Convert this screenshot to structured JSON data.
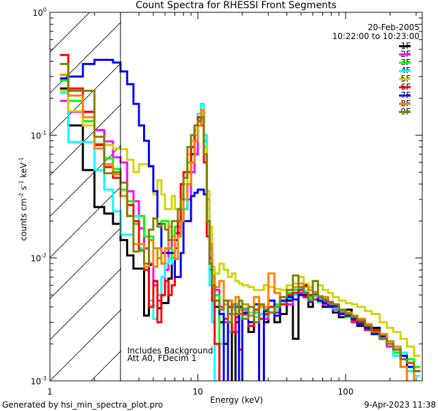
{
  "chart_data": {
    "type": "line",
    "title": "Count Spectra for RHESSI Front Segments",
    "subtitle_date": "20-Feb-2005",
    "subtitle_time": "10:22:00 to 10:23:00",
    "xlabel": "Energy (keV)",
    "ylabel_parts": {
      "a": "counts cm",
      "b": "-2",
      "c": " s",
      "d": "-1",
      "e": " keV",
      "f": "-1"
    },
    "xscale": "log",
    "yscale": "log",
    "xlim": [
      1,
      330
    ],
    "ylim": [
      0.001,
      1
    ],
    "xticks": [
      {
        "value": 1,
        "label": "1"
      },
      {
        "value": 10,
        "label": "10"
      },
      {
        "value": 100,
        "label": "100"
      }
    ],
    "yticks": [
      {
        "value": 1,
        "base": "10",
        "exp": "0"
      },
      {
        "value": 0.1,
        "base": "10",
        "exp": "-1"
      },
      {
        "value": 0.01,
        "base": "10",
        "exp": "-2"
      },
      {
        "value": 0.001,
        "base": "10",
        "exp": "-3"
      }
    ],
    "hatched_region_kev": [
      1,
      3
    ],
    "threshold_line_kev": 3,
    "legend_placement": "top-right",
    "annotations": [
      "Includes Background",
      "Att A0, FDecim 1"
    ],
    "energy_edges": [
      1.17,
      1.33,
      1.67,
      2.0,
      2.33,
      2.67,
      3.0,
      3.33,
      3.67,
      4.0,
      4.33,
      4.67,
      5.0,
      5.33,
      5.67,
      6.0,
      6.33,
      6.67,
      7.0,
      7.33,
      7.67,
      8.0,
      8.5,
      9.0,
      9.5,
      10.0,
      10.5,
      11.0,
      11.5,
      12.0,
      12.5,
      13,
      14,
      15,
      16,
      17,
      18,
      19,
      20,
      22,
      24,
      26,
      28,
      30,
      33,
      36,
      40,
      44,
      48,
      52,
      56,
      60,
      65,
      70,
      76,
      82,
      90,
      100,
      110,
      120,
      135,
      150,
      170,
      190,
      210,
      235,
      260,
      290,
      320
    ],
    "series": [
      {
        "name": "1F",
        "color": "#000000",
        "values": [
          0.24,
          0.12,
          0.052,
          0.026,
          0.023,
          0.019,
          0.014,
          0.0105,
          0.0082,
          0.0082,
          0.0034,
          0.0088,
          0.0065,
          0.0039,
          0.0043,
          0.0043,
          0.0068,
          0.01,
          0.014,
          0.016,
          0.02,
          0.025,
          0.04,
          0.07,
          0.1,
          0.13,
          0.15,
          0.08,
          0.02,
          0.008,
          0.006,
          0.004,
          0.003,
          0.002,
          0.0045,
          0.0008,
          0.003,
          0.004,
          0.0035,
          0.0025,
          0.003,
          0.0035,
          0.003,
          0.0045,
          0.003,
          0.0035,
          0.0045,
          0.0022,
          0.005,
          0.006,
          0.004,
          0.005,
          0.0045,
          0.004,
          0.004,
          0.0036,
          0.0033,
          0.0038,
          0.003,
          0.0028,
          0.0029,
          0.0027,
          0.0022,
          0.0021,
          0.0017,
          0.0016,
          0.0013,
          0.0012
        ]
      },
      {
        "name": "2F",
        "color": "#ff00ff",
        "values": [
          0.19,
          0.155,
          0.155,
          0.11,
          0.089,
          0.066,
          0.06,
          0.035,
          0.029,
          0.0175,
          0.012,
          0.009,
          0.006,
          0.0045,
          0.005,
          0.008,
          0.012,
          0.014,
          0.016,
          0.018,
          0.02,
          0.025,
          0.03,
          0.05,
          0.07,
          0.12,
          0.16,
          0.1,
          0.03,
          0.01,
          0.007,
          0.0055,
          0.004,
          0.003,
          0.0035,
          0.004,
          0.0025,
          0.0035,
          0.0038,
          0.003,
          0.0036,
          0.0009,
          0.0032,
          0.004,
          0.0036,
          0.0048,
          0.0042,
          0.0055,
          0.0052,
          0.0048,
          0.0045,
          0.0049,
          0.0047,
          0.0042,
          0.0044,
          0.0038,
          0.0036,
          0.0034,
          0.003,
          0.0031,
          0.0027,
          0.0025,
          0.0024,
          0.0019,
          0.0019,
          0.0015,
          0.0014,
          0.0012
        ]
      },
      {
        "name": "3F",
        "color": "#00ff00",
        "values": [
          0.28,
          0.19,
          0.13,
          0.085,
          0.065,
          0.053,
          0.036,
          0.029,
          0.019,
          0.022,
          0.015,
          0.015,
          0.012,
          0.01,
          0.02,
          0.02,
          0.012,
          0.01,
          0.018,
          0.02,
          0.025,
          0.04,
          0.06,
          0.08,
          0.1,
          0.14,
          0.15,
          0.09,
          0.02,
          0.012,
          0.008,
          0.005,
          0.0008,
          0.0045,
          0.004,
          0.0035,
          0.0042,
          0.0032,
          0.0039,
          0.003,
          0.0036,
          0.0042,
          0.0034,
          0.0036,
          0.0042,
          0.0045,
          0.0052,
          0.0055,
          0.0058,
          0.0052,
          0.0048,
          0.0053,
          0.0044,
          0.0048,
          0.0041,
          0.0039,
          0.0037,
          0.0033,
          0.0034,
          0.003,
          0.0027,
          0.0025,
          0.0022,
          0.0021,
          0.0017,
          0.0013,
          0.0015,
          0.0013
        ]
      },
      {
        "name": "4F",
        "color": "#00ffff",
        "values": [
          0.22,
          0.088,
          0.088,
          0.052,
          0.036,
          0.024,
          0.0155,
          0.0155,
          0.022,
          0.012,
          0.008,
          0.0045,
          0.0032,
          0.005,
          0.007,
          0.009,
          0.01,
          0.009,
          0.012,
          0.015,
          0.02,
          0.025,
          0.04,
          0.06,
          0.1,
          0.15,
          0.18,
          0.1,
          0.025,
          0.006,
          0.003,
          0.0008,
          0.002,
          0.0045,
          0.0025,
          0.0038,
          0.0042,
          0.0032,
          0.0034,
          0.0036,
          0.0033,
          0.0035,
          0.0035,
          0.0036,
          0.0038,
          0.0044,
          0.0047,
          0.005,
          0.0057,
          0.0054,
          0.0047,
          0.0049,
          0.0046,
          0.0044,
          0.0042,
          0.0039,
          0.0038,
          0.0035,
          0.0031,
          0.003,
          0.0028,
          0.0025,
          0.0024,
          0.0021,
          0.0016,
          0.0017,
          0.0012,
          0.0011
        ]
      },
      {
        "name": "5F",
        "color": "#d4d400",
        "values": [
          0.23,
          0.157,
          0.12,
          0.083,
          0.083,
          0.078,
          0.077,
          0.063,
          0.05,
          0.058,
          0.058,
          0.055,
          0.033,
          0.043,
          0.033,
          0.025,
          0.025,
          0.032,
          0.025,
          0.025,
          0.03,
          0.04,
          0.07,
          0.09,
          0.11,
          0.14,
          0.15,
          0.08,
          0.035,
          0.018,
          0.0085,
          0.0075,
          0.009,
          0.008,
          0.007,
          0.0075,
          0.0065,
          0.0062,
          0.006,
          0.0058,
          0.0055,
          0.0055,
          0.006,
          0.0058,
          0.0056,
          0.0055,
          0.006,
          0.0062,
          0.007,
          0.0062,
          0.0058,
          0.0065,
          0.006,
          0.0055,
          0.0052,
          0.0048,
          0.0045,
          0.0043,
          0.0042,
          0.004,
          0.0037,
          0.0035,
          0.003,
          0.0027,
          0.0025,
          0.0022,
          0.0019,
          0.0016
        ]
      },
      {
        "name": "6F",
        "color": "#ff0000",
        "values": [
          0.45,
          0.24,
          0.155,
          0.083,
          0.055,
          0.045,
          0.032,
          0.027,
          0.02,
          0.0115,
          0.008,
          0.004,
          0.0065,
          0.003,
          0.005,
          0.0065,
          0.005,
          0.006,
          0.012,
          0.02,
          0.04,
          0.05,
          0.05,
          0.08,
          0.12,
          0.14,
          0.12,
          0.06,
          0.015,
          0.009,
          0.0045,
          0.002,
          0.0008,
          0.0032,
          0.004,
          0.0025,
          0.0033,
          0.0018,
          0.0035,
          0.0028,
          0.0038,
          0.0032,
          0.0035,
          0.004,
          0.0036,
          0.0042,
          0.005,
          0.0052,
          0.0055,
          0.0048,
          0.005,
          0.0046,
          0.0048,
          0.0045,
          0.0041,
          0.004,
          0.0035,
          0.0036,
          0.0031,
          0.003,
          0.0026,
          0.0026,
          0.0022,
          0.002,
          0.0018,
          0.0015,
          0.0014,
          0.0012
        ]
      },
      {
        "name": "7F",
        "color": "#0000ff",
        "values": [
          0.29,
          0.3,
          0.38,
          0.41,
          0.41,
          0.39,
          0.33,
          0.26,
          0.18,
          0.12,
          0.09,
          0.056,
          0.035,
          0.019,
          0.011,
          0.011,
          0.011,
          0.011,
          0.007,
          0.007,
          0.011,
          0.02,
          0.02,
          0.032,
          0.034,
          0.036,
          0.036,
          0.033,
          0.02,
          0.01,
          0.006,
          0.0045,
          0.0035,
          0.0008,
          0.0045,
          0.0035,
          0.004,
          0.0009,
          0.0036,
          0.003,
          0.0042,
          0.0008,
          0.0037,
          0.0045,
          0.0034,
          0.0045,
          0.0048,
          0.0046,
          0.005,
          0.005,
          0.0044,
          0.0052,
          0.0045,
          0.0043,
          0.004,
          0.0041,
          0.0035,
          0.0034,
          0.0032,
          0.0029,
          0.0027,
          0.0024,
          0.0023,
          0.002,
          0.0018,
          0.0016,
          0.0013,
          0.0012
        ]
      },
      {
        "name": "8F",
        "color": "#ff8000",
        "values": [
          0.31,
          0.21,
          0.14,
          0.078,
          0.058,
          0.048,
          0.032,
          0.022,
          0.013,
          0.013,
          0.0085,
          0.014,
          0.0085,
          0.012,
          0.009,
          0.012,
          0.018,
          0.015,
          0.0098,
          0.015,
          0.02,
          0.03,
          0.04,
          0.06,
          0.09,
          0.12,
          0.16,
          0.07,
          0.02,
          0.013,
          0.007,
          0.0058,
          0.0065,
          0.0042,
          0.0045,
          0.0035,
          0.0048,
          0.0038,
          0.0042,
          0.0034,
          0.0048,
          0.004,
          0.004,
          0.0075,
          0.0052,
          0.0048,
          0.0055,
          0.0058,
          0.0062,
          0.0058,
          0.0055,
          0.0052,
          0.0049,
          0.0048,
          0.0043,
          0.0042,
          0.0038,
          0.0036,
          0.0034,
          0.0032,
          0.0029,
          0.0025,
          0.0024,
          0.0021,
          0.0019,
          0.0013,
          0.0009,
          0.0012
        ]
      },
      {
        "name": "9F",
        "color": "#808000",
        "values": [
          0.38,
          0.23,
          0.23,
          0.097,
          0.049,
          0.05,
          0.041,
          0.022,
          0.0113,
          0.0115,
          0.009,
          0.017,
          0.021,
          0.018,
          0.019,
          0.017,
          0.014,
          0.02,
          0.02,
          0.025,
          0.03,
          0.045,
          0.08,
          0.1,
          0.12,
          0.13,
          0.14,
          0.07,
          0.02,
          0.009,
          0.006,
          0.0045,
          0.0038,
          0.0045,
          0.003,
          0.0042,
          0.0035,
          0.0045,
          0.0032,
          0.004,
          0.003,
          0.0042,
          0.0038,
          0.0036,
          0.004,
          0.0048,
          0.0055,
          0.0072,
          0.0058,
          0.0052,
          0.0045,
          0.0065,
          0.0048,
          0.0046,
          0.0043,
          0.0042,
          0.0038,
          0.0035,
          0.0033,
          0.0031,
          0.0028,
          0.0025,
          0.0022,
          0.002,
          0.0018,
          0.0015,
          0.0014,
          0.0012
        ]
      }
    ]
  },
  "footer": {
    "generated_by": "Generated by hsi_min_spectra_plot.pro",
    "timestamp": "9-Apr-2023 11:38"
  }
}
